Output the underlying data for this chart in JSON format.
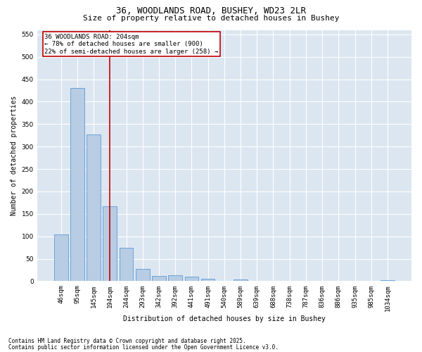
{
  "title1": "36, WOODLANDS ROAD, BUSHEY, WD23 2LR",
  "title2": "Size of property relative to detached houses in Bushey",
  "xlabel": "Distribution of detached houses by size in Bushey",
  "ylabel": "Number of detached properties",
  "categories": [
    "46sqm",
    "95sqm",
    "145sqm",
    "194sqm",
    "244sqm",
    "293sqm",
    "342sqm",
    "392sqm",
    "441sqm",
    "491sqm",
    "540sqm",
    "589sqm",
    "639sqm",
    "688sqm",
    "738sqm",
    "787sqm",
    "836sqm",
    "886sqm",
    "935sqm",
    "985sqm",
    "1034sqm"
  ],
  "values": [
    105,
    430,
    327,
    167,
    75,
    28,
    11,
    13,
    10,
    5,
    0,
    4,
    0,
    0,
    0,
    0,
    0,
    0,
    0,
    0,
    3
  ],
  "bar_color": "#b8cce4",
  "bar_edgecolor": "#5b9bd5",
  "vline_x": 3.0,
  "vline_color": "#c00000",
  "annotation_text": "36 WOODLANDS ROAD: 204sqm\n← 78% of detached houses are smaller (900)\n22% of semi-detached houses are larger (258) →",
  "box_color": "#c00000",
  "ylim": [
    0,
    560
  ],
  "yticks": [
    0,
    50,
    100,
    150,
    200,
    250,
    300,
    350,
    400,
    450,
    500,
    550
  ],
  "background_color": "#dce6f1",
  "grid_color": "#ffffff",
  "footer1": "Contains HM Land Registry data © Crown copyright and database right 2025.",
  "footer2": "Contains public sector information licensed under the Open Government Licence v3.0.",
  "title_fontsize": 9,
  "subtitle_fontsize": 8,
  "axis_label_fontsize": 7,
  "tick_fontsize": 6.5,
  "annotation_fontsize": 6.5,
  "footer_fontsize": 5.5
}
